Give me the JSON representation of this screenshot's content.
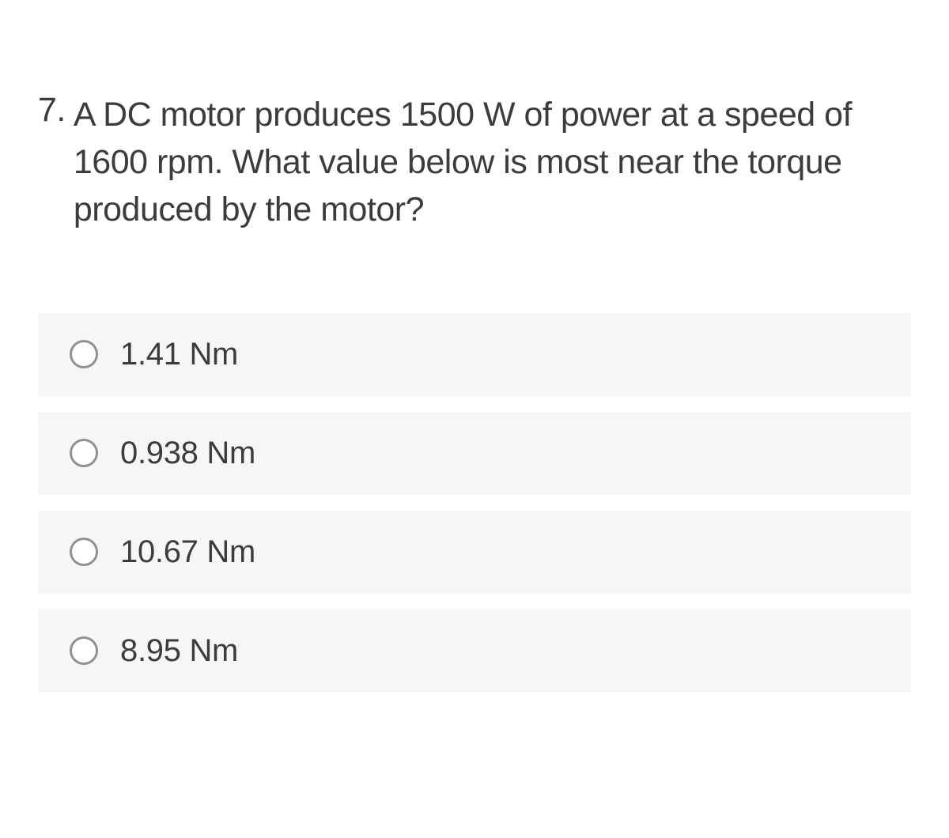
{
  "question": {
    "number": "7.",
    "text": "A DC motor produces 1500 W of power at a speed of 1600 rpm.  What value below is most near the torque produced by the motor?"
  },
  "options": [
    {
      "label": "1.41 Nm"
    },
    {
      "label": "0.938 Nm"
    },
    {
      "label": "10.67 Nm"
    },
    {
      "label": "8.95 Nm"
    }
  ],
  "style": {
    "text_color": "#3c3c3c",
    "option_bg": "#f6f6f6",
    "radio_border": "#919191",
    "page_bg": "#ffffff",
    "question_fontsize": 43,
    "option_fontsize": 40
  }
}
